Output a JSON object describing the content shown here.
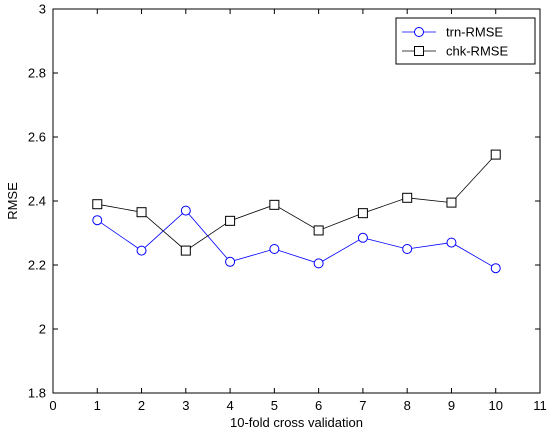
{
  "chart_data": {
    "type": "line",
    "title": "",
    "xlabel": "10-fold cross validation",
    "ylabel": "RMSE",
    "xlim": [
      0,
      11
    ],
    "ylim": [
      1.8,
      3.0
    ],
    "xticks": [
      0,
      1,
      2,
      3,
      4,
      5,
      6,
      7,
      8,
      9,
      10,
      11
    ],
    "yticks": [
      1.8,
      2.0,
      2.2,
      2.4,
      2.6,
      2.8,
      3.0
    ],
    "ytick_labels": [
      "1.8",
      "2",
      "2.2",
      "2.4",
      "2.6",
      "2.8",
      "3"
    ],
    "grid": false,
    "legend_position": "top-right",
    "x": [
      1,
      2,
      3,
      4,
      5,
      6,
      7,
      8,
      9,
      10
    ],
    "series": [
      {
        "name": "trn-RMSE",
        "marker": "circle",
        "color": "#0000ff",
        "values": [
          2.34,
          2.245,
          2.37,
          2.21,
          2.25,
          2.205,
          2.285,
          2.25,
          2.27,
          2.19
        ]
      },
      {
        "name": "chk-RMSE",
        "marker": "square",
        "color": "#000000",
        "values": [
          2.39,
          2.365,
          2.245,
          2.338,
          2.388,
          2.308,
          2.362,
          2.41,
          2.395,
          2.545
        ]
      }
    ]
  }
}
